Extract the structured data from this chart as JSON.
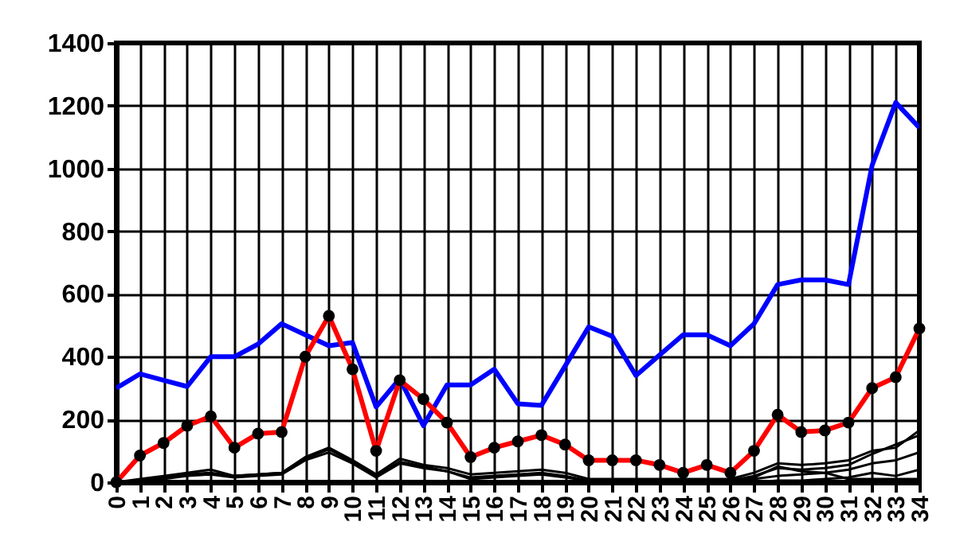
{
  "chart_data": {
    "type": "line",
    "categories": [
      "0",
      "1",
      "2",
      "3",
      "4",
      "5",
      "6",
      "7",
      "8",
      "9",
      "10",
      "11",
      "12",
      "13",
      "14",
      "15",
      "16",
      "17",
      "18",
      "19",
      "20",
      "21",
      "22",
      "23",
      "24",
      "25",
      "26",
      "27",
      "28",
      "29",
      "30",
      "31",
      "32",
      "33",
      "34"
    ],
    "series": [
      {
        "color": "#000000",
        "values": [
          0,
          10,
          20,
          30,
          40,
          20,
          25,
          30,
          75,
          105,
          65,
          20,
          65,
          50,
          35,
          15,
          20,
          25,
          30,
          20,
          5,
          5,
          5,
          5,
          5,
          5,
          5,
          15,
          50,
          35,
          30,
          10,
          10,
          10,
          10
        ]
      },
      {
        "color": "#000000",
        "values": [
          0,
          5,
          15,
          25,
          30,
          20,
          25,
          30,
          80,
          110,
          70,
          25,
          75,
          55,
          45,
          25,
          30,
          35,
          40,
          30,
          10,
          10,
          10,
          10,
          10,
          10,
          10,
          30,
          60,
          55,
          60,
          70,
          100,
          110,
          165
        ]
      },
      {
        "color": "#000000",
        "values": [
          0,
          5,
          10,
          20,
          25,
          15,
          20,
          25,
          70,
          95,
          60,
          15,
          60,
          45,
          35,
          10,
          15,
          20,
          25,
          15,
          5,
          5,
          5,
          5,
          5,
          5,
          5,
          20,
          45,
          40,
          45,
          55,
          90,
          120,
          150
        ]
      },
      {
        "color": "#000000",
        "values": [
          0,
          0,
          0,
          0,
          0,
          0,
          0,
          0,
          0,
          0,
          0,
          0,
          0,
          0,
          0,
          0,
          0,
          0,
          0,
          0,
          0,
          0,
          0,
          0,
          0,
          0,
          0,
          10,
          20,
          25,
          30,
          40,
          60,
          70,
          95
        ]
      },
      {
        "color": "#000000",
        "values": [
          0,
          0,
          0,
          0,
          0,
          0,
          0,
          0,
          0,
          0,
          0,
          0,
          0,
          0,
          0,
          0,
          0,
          0,
          0,
          0,
          0,
          0,
          0,
          0,
          0,
          0,
          0,
          0,
          5,
          5,
          10,
          15,
          30,
          20,
          40
        ]
      },
      {
        "color": "#0000ff",
        "values": [
          300,
          345,
          325,
          305,
          400,
          400,
          440,
          505,
          470,
          435,
          445,
          240,
          330,
          180,
          310,
          310,
          360,
          250,
          245,
          370,
          495,
          465,
          340,
          405,
          470,
          470,
          435,
          505,
          630,
          645,
          645,
          630,
          1010,
          1210,
          1130
        ]
      },
      {
        "color": "#ff0000",
        "marker": "circle",
        "values": [
          0,
          85,
          125,
          180,
          210,
          110,
          155,
          160,
          400,
          530,
          360,
          100,
          325,
          265,
          190,
          80,
          110,
          130,
          150,
          120,
          70,
          70,
          70,
          55,
          30,
          55,
          30,
          100,
          215,
          160,
          165,
          190,
          300,
          335,
          490
        ]
      }
    ],
    "ylim": [
      0,
      1400
    ],
    "yticks": [
      0,
      200,
      400,
      600,
      800,
      1000,
      1200,
      1400
    ],
    "grid": true
  }
}
